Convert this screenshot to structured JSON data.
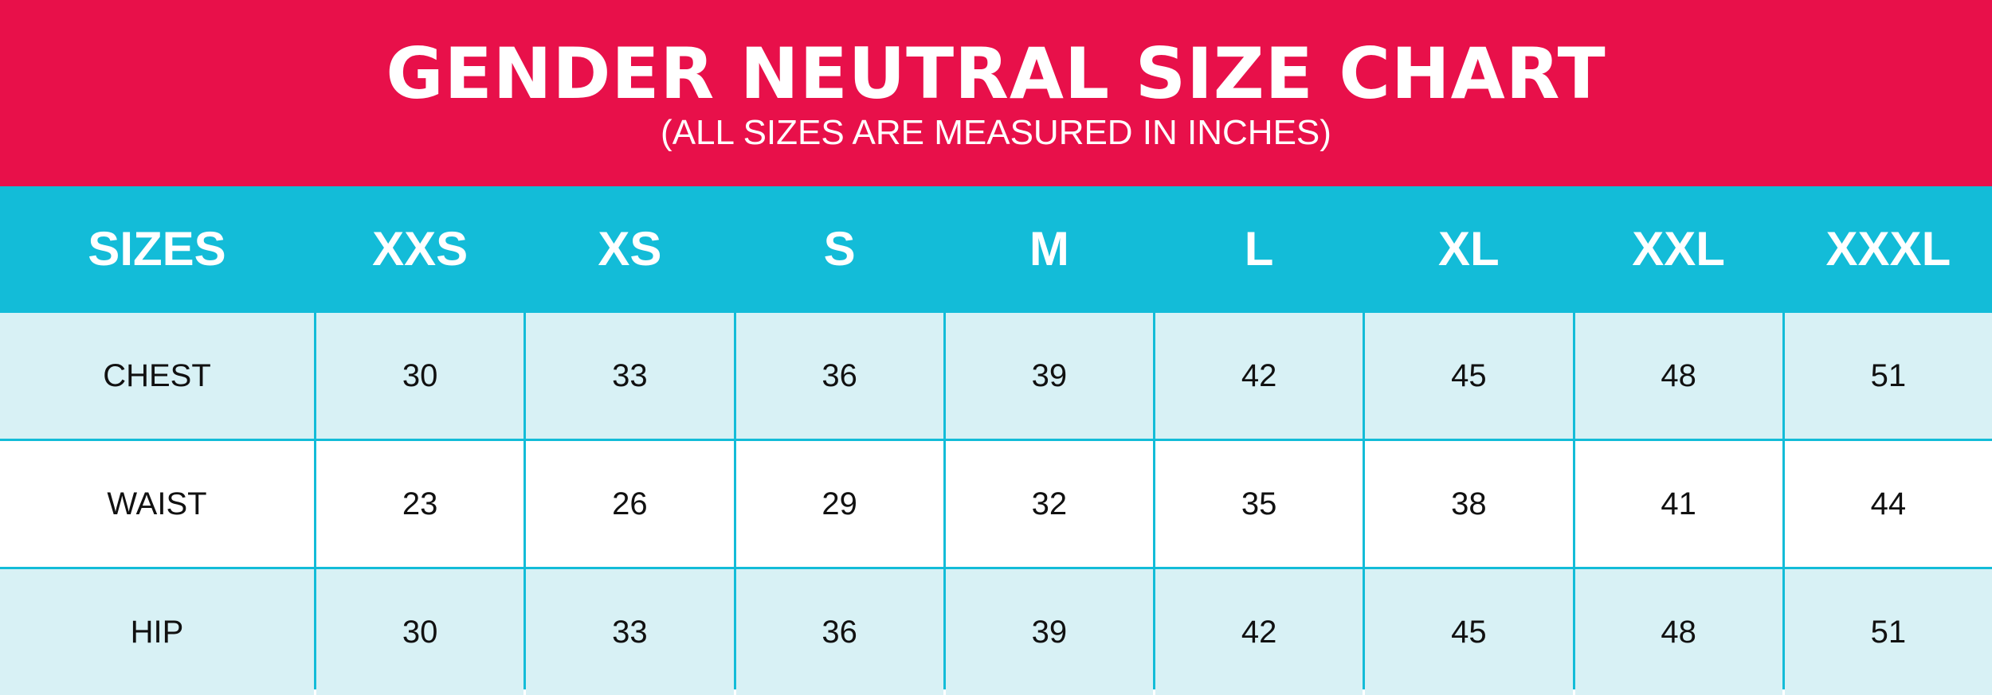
{
  "header": {
    "title": "GENDER NEUTRAL SIZE CHART",
    "subtitle": "(ALL SIZES ARE MEASURED IN INCHES)"
  },
  "table": {
    "columns": [
      "SIZES",
      "XXS",
      "XS",
      "S",
      "M",
      "L",
      "XL",
      "XXL",
      "XXXL"
    ],
    "rows": [
      [
        "CHEST",
        30,
        33,
        36,
        39,
        42,
        45,
        48,
        51
      ],
      [
        "WAIST",
        23,
        26,
        29,
        32,
        35,
        38,
        41,
        44
      ],
      [
        "HIP",
        30,
        33,
        36,
        39,
        42,
        45,
        48,
        51
      ]
    ]
  }
}
